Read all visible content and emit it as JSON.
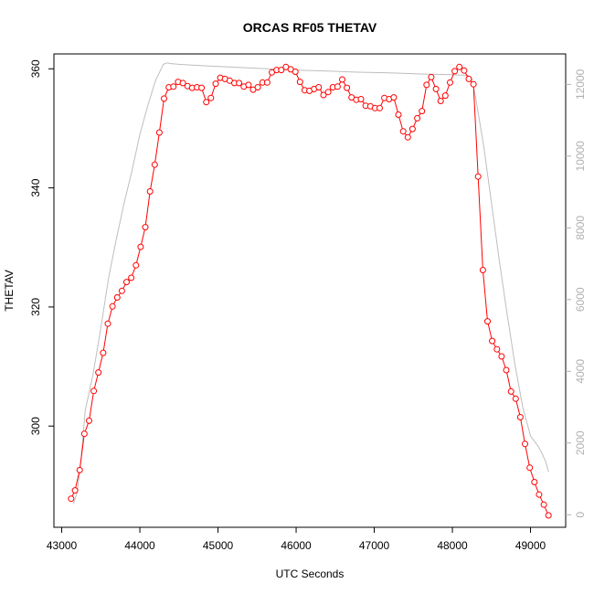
{
  "chart_data": {
    "type": "line",
    "title": "ORCAS RF05 THETAV",
    "xlabel": "UTC Seconds",
    "ylabel": "THETAV",
    "xlim": [
      42900,
      49450
    ],
    "ylim": [
      283,
      362.5
    ],
    "y2lim": [
      -350,
      12850
    ],
    "x_ticks": [
      43000,
      44000,
      45000,
      46000,
      47000,
      48000,
      49000
    ],
    "y_ticks": [
      300,
      320,
      340,
      360
    ],
    "y2_ticks": [
      0,
      2000,
      4000,
      6000,
      8000,
      10000,
      12000
    ],
    "colors": {
      "primary": "#ff0000",
      "secondary": "#bebebe",
      "axes": "#000000",
      "secondary_ticks": "#b0b0b0"
    },
    "series": [
      {
        "axis": "left",
        "color": "#ff0000",
        "markers": "open-circle",
        "x": [
          43120,
          43170,
          43230,
          43290,
          43350,
          43410,
          43470,
          43530,
          43590,
          43650,
          43710,
          43770,
          43830,
          43890,
          43950,
          44010,
          44070,
          44130,
          44190,
          44250,
          44310,
          44370,
          44430,
          44490,
          44550,
          44610,
          44670,
          44730,
          44790,
          44850,
          44910,
          44970,
          45030,
          45090,
          45150,
          45210,
          45270,
          45330,
          45390,
          45450,
          45510,
          45570,
          45630,
          45690,
          45750,
          45810,
          45870,
          45930,
          45990,
          46050,
          46110,
          46170,
          46230,
          46290,
          46350,
          46410,
          46470,
          46530,
          46590,
          46650,
          46710,
          46770,
          46830,
          46890,
          46950,
          47010,
          47070,
          47130,
          47190,
          47250,
          47310,
          47370,
          47430,
          47490,
          47550,
          47610,
          47670,
          47730,
          47790,
          47850,
          47910,
          47970,
          48030,
          48090,
          48150,
          48210,
          48270,
          48330,
          48390,
          48450,
          48510,
          48570,
          48630,
          48690,
          48750,
          48810,
          48870,
          48930,
          48990,
          49050,
          49110,
          49170,
          49230
        ],
        "y": [
          287.8,
          289.2,
          292.6,
          298.7,
          300.9,
          305.9,
          309.0,
          312.3,
          317.2,
          320.1,
          321.6,
          322.7,
          324.2,
          324.9,
          327.0,
          330.1,
          333.4,
          339.4,
          343.9,
          349.3,
          355.0,
          356.9,
          357.0,
          357.8,
          357.6,
          357.1,
          356.8,
          356.9,
          356.8,
          354.4,
          355.1,
          357.5,
          358.5,
          358.3,
          358.0,
          357.6,
          357.6,
          357.0,
          357.3,
          356.5,
          356.9,
          357.7,
          357.7,
          359.4,
          359.8,
          359.8,
          360.3,
          359.9,
          359.5,
          357.8,
          356.4,
          356.3,
          356.6,
          356.9,
          355.6,
          356.1,
          356.9,
          357.0,
          358.2,
          356.8,
          355.2,
          354.8,
          354.9,
          353.8,
          353.7,
          353.4,
          353.4,
          355.1,
          354.9,
          355.2,
          352.3,
          349.5,
          348.5,
          349.9,
          351.7,
          352.9,
          357.3,
          358.6,
          356.6,
          354.6,
          355.5,
          357.7,
          359.6,
          360.3,
          359.7,
          358.3,
          357.4,
          341.9,
          326.2,
          317.6,
          314.3,
          312.9,
          311.7,
          309.4,
          305.8,
          304.6,
          301.5,
          297.0,
          293.0,
          290.6,
          288.5,
          286.8,
          285.0
        ]
      },
      {
        "axis": "right",
        "color": "#bebebe",
        "markers": "none",
        "x": [
          43150,
          43200,
          43250,
          43300,
          43400,
          43500,
          43600,
          43700,
          43800,
          43900,
          44000,
          44100,
          44200,
          44300,
          44350,
          44400,
          44500,
          44800,
          45200,
          45600,
          46000,
          46400,
          46800,
          47200,
          47600,
          48000,
          48100,
          48200,
          48250,
          48300,
          48400,
          48500,
          48600,
          48700,
          48800,
          48900,
          49000,
          49100,
          49150,
          49200,
          49230
        ],
        "y": [
          300,
          650,
          1600,
          2900,
          3900,
          5200,
          6600,
          7700,
          8700,
          9600,
          10600,
          11400,
          12100,
          12560,
          12600,
          12580,
          12560,
          12520,
          12480,
          12440,
          12400,
          12370,
          12340,
          12320,
          12290,
          12270,
          12260,
          12250,
          12150,
          11600,
          10300,
          8700,
          7100,
          5600,
          4200,
          3000,
          2200,
          1900,
          1700,
          1450,
          1200
        ]
      }
    ]
  }
}
